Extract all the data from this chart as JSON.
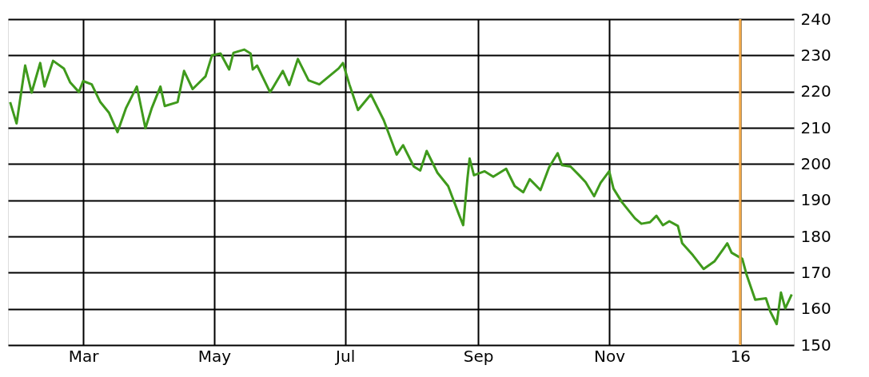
{
  "chart_data": {
    "type": "line",
    "x": [
      "2015-01-26",
      "2015-01-29",
      "2015-02-02",
      "2015-02-05",
      "2015-02-09",
      "2015-02-11",
      "2015-02-15",
      "2015-02-20",
      "2015-02-23",
      "2015-02-27",
      "2015-03-01",
      "2015-03-05",
      "2015-03-09",
      "2015-03-13",
      "2015-03-17",
      "2015-03-21",
      "2015-03-26",
      "2015-03-30",
      "2015-04-02",
      "2015-04-06",
      "2015-04-08",
      "2015-04-14",
      "2015-04-17",
      "2015-04-21",
      "2015-04-27",
      "2015-04-30",
      "2015-05-04",
      "2015-05-08",
      "2015-05-10",
      "2015-05-15",
      "2015-05-18",
      "2015-05-19",
      "2015-05-21",
      "2015-05-27",
      "2015-05-28",
      "2015-06-02",
      "2015-06-05",
      "2015-06-09",
      "2015-06-14",
      "2015-06-19",
      "2015-06-28",
      "2015-06-30",
      "2015-07-03",
      "2015-07-07",
      "2015-07-13",
      "2015-07-19",
      "2015-07-25",
      "2015-07-28",
      "2015-08-02",
      "2015-08-05",
      "2015-08-08",
      "2015-08-13",
      "2015-08-18",
      "2015-08-23",
      "2015-08-25",
      "2015-08-27",
      "2015-08-28",
      "2015-08-30",
      "2015-09-04",
      "2015-09-08",
      "2015-09-14",
      "2015-09-18",
      "2015-09-22",
      "2015-09-25",
      "2015-09-30",
      "2015-10-04",
      "2015-10-08",
      "2015-10-10",
      "2015-10-14",
      "2015-10-18",
      "2015-10-21",
      "2015-10-25",
      "2015-10-28",
      "2015-11-01",
      "2015-11-03",
      "2015-11-07",
      "2015-11-13",
      "2015-11-16",
      "2015-11-20",
      "2015-11-23",
      "2015-11-26",
      "2015-11-29",
      "2015-12-03",
      "2015-12-05",
      "2015-12-10",
      "2015-12-15",
      "2015-12-20",
      "2015-12-24",
      "2015-12-26",
      "2015-12-28",
      "2016-01-02",
      "2016-01-04",
      "2016-01-08",
      "2016-01-13",
      "2016-01-15",
      "2016-01-18",
      "2016-01-20",
      "2016-01-22",
      "2016-01-25"
    ],
    "series": [
      {
        "color": "#3f9a1c",
        "values": [
          217.1,
          211.2,
          227.2,
          219.7,
          227.9,
          221.4,
          228.5,
          226.4,
          222.5,
          219.9,
          222.9,
          222.0,
          217.1,
          214.2,
          208.8,
          215.5,
          221.4,
          209.9,
          215.5,
          221.4,
          216.0,
          217.1,
          225.7,
          220.7,
          224.2,
          230.0,
          230.5,
          226.1,
          230.7,
          231.6,
          230.5,
          226.1,
          227.2,
          219.9,
          220.7,
          225.7,
          221.8,
          229.0,
          223.1,
          222.0,
          226.4,
          227.9,
          222.0,
          214.9,
          219.2,
          212.1,
          202.6,
          205.2,
          199.3,
          198.2,
          203.6,
          197.6,
          193.9,
          186.1,
          183.1,
          196.1,
          201.5,
          196.9,
          198.0,
          196.5,
          198.7,
          193.9,
          192.2,
          195.8,
          192.8,
          199.1,
          203.0,
          199.7,
          199.3,
          196.9,
          195.0,
          191.1,
          194.8,
          198.0,
          193.2,
          189.4,
          185.0,
          183.5,
          183.9,
          185.7,
          183.1,
          184.2,
          182.9,
          178.1,
          174.8,
          171.0,
          173.1,
          176.4,
          178.1,
          175.5,
          173.8,
          169.4,
          162.5,
          162.9,
          159.3,
          155.8,
          164.5,
          160.1,
          164.0
        ]
      }
    ],
    "xlim": [
      "2015-01-25",
      "2016-01-26"
    ],
    "xticks": [
      {
        "value": "2015-03-01",
        "label": "Mar"
      },
      {
        "value": "2015-05-01",
        "label": "May"
      },
      {
        "value": "2015-07-01",
        "label": "Jul"
      },
      {
        "value": "2015-09-01",
        "label": "Sep"
      },
      {
        "value": "2015-11-01",
        "label": "Nov"
      },
      {
        "value": "2016-01-01",
        "label": "16"
      }
    ],
    "ylim": [
      150,
      240
    ],
    "yticks": [
      150,
      160,
      170,
      180,
      190,
      200,
      210,
      220,
      230,
      240
    ],
    "grid": true,
    "ref_lines": [
      {
        "axis": "x",
        "value": "2016-01-01",
        "color": "#f0a848"
      }
    ],
    "line_style": "solid",
    "marker": "none"
  }
}
